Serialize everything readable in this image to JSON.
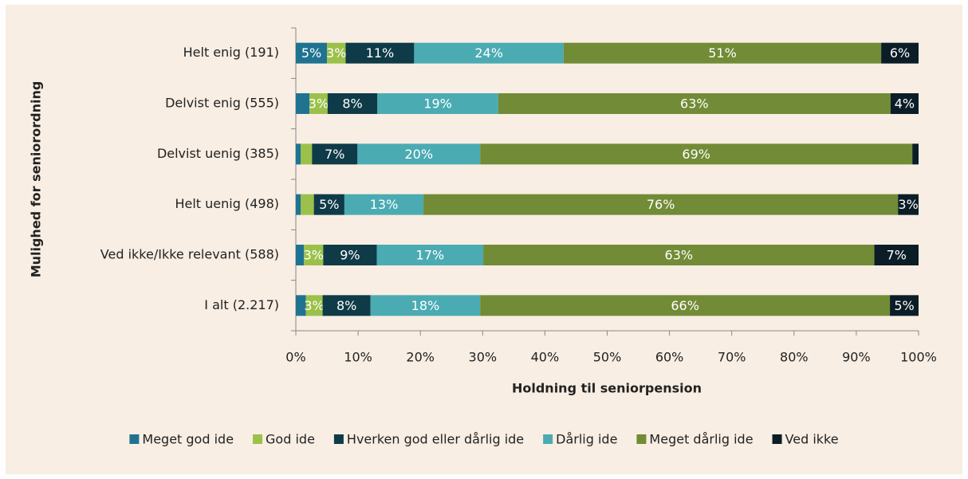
{
  "chart_data": {
    "type": "stacked-barh",
    "y_label": "Mulighed for seniorordning",
    "x_label": "Holdning til seniorpension",
    "categories": [
      "Helt enig (191)",
      "Delvist enig (555)",
      "Delvist uenig (385)",
      "Helt uenig (498)",
      "Ved ikke/Ikke relevant (588)",
      "I alt (2.217)"
    ],
    "series": [
      {
        "name": "Meget god ide",
        "color": "#1f7391",
        "values": [
          5,
          2.2,
          0.8,
          0.8,
          1.3,
          1.6
        ],
        "value_labels": [
          "5%",
          null,
          null,
          null,
          null,
          null
        ]
      },
      {
        "name": "God ide",
        "color": "#9bc14a",
        "values": [
          3,
          2.9,
          1.8,
          2.1,
          3.1,
          2.7
        ],
        "value_labels": [
          "3%",
          "3%",
          null,
          null,
          "3%",
          "3%"
        ]
      },
      {
        "name": "Hverken god eller dårlig ide",
        "color": "#0f3b48",
        "values": [
          11,
          8.0,
          7.3,
          4.9,
          8.6,
          7.7
        ],
        "value_labels": [
          "11%",
          "8%",
          "7%",
          "5%",
          "9%",
          "8%"
        ]
      },
      {
        "name": "Dårlig ide",
        "color": "#4babb3",
        "values": [
          24,
          19.4,
          19.7,
          12.7,
          17.1,
          17.6
        ],
        "value_labels": [
          "24%",
          "19%",
          "20%",
          "13%",
          "17%",
          "18%"
        ]
      },
      {
        "name": "Meget dårlig ide",
        "color": "#728b36",
        "values": [
          51,
          63.0,
          69.4,
          76.2,
          62.8,
          65.8
        ],
        "value_labels": [
          "51%",
          "63%",
          "69%",
          "76%",
          "63%",
          "66%"
        ]
      },
      {
        "name": "Ved ikke",
        "color": "#0b1d27",
        "values": [
          6,
          4.5,
          1.0,
          3.3,
          7.1,
          4.6
        ],
        "value_labels": [
          "6%",
          "4%",
          null,
          "3%",
          "7%",
          "5%"
        ]
      }
    ],
    "xlim": [
      0,
      100
    ],
    "xticks": [
      {
        "value": 0,
        "label": "0%"
      },
      {
        "value": 10,
        "label": "10%"
      },
      {
        "value": 20,
        "label": "20%"
      },
      {
        "value": 30,
        "label": "30%"
      },
      {
        "value": 40,
        "label": "40%"
      },
      {
        "value": 50,
        "label": "50%"
      },
      {
        "value": 60,
        "label": "60%"
      },
      {
        "value": 70,
        "label": "70%"
      },
      {
        "value": 80,
        "label": "80%"
      },
      {
        "value": 90,
        "label": "90%"
      },
      {
        "value": 100,
        "label": "100%"
      }
    ],
    "legend": "bottom"
  }
}
